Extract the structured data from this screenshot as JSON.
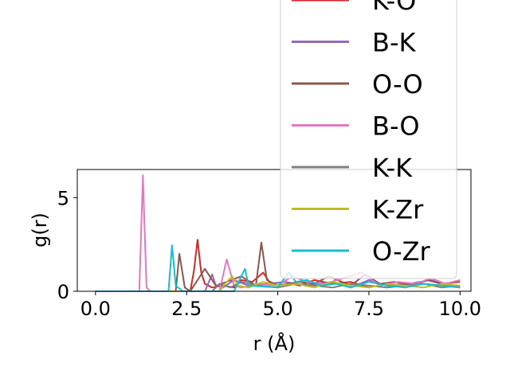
{
  "chart_data": {
    "type": "line",
    "xlabel": "r (Å)",
    "ylabel": "g(r)",
    "xlim": [
      -0.5,
      10.3
    ],
    "ylim": [
      0,
      6.5
    ],
    "xticks": [
      0.0,
      2.5,
      5.0,
      7.5,
      10.0
    ],
    "xtick_labels": [
      "0.0",
      "2.5",
      "5.0",
      "7.5",
      "10.0"
    ],
    "yticks": [
      0,
      5
    ],
    "ytick_labels": [
      "0",
      "5"
    ],
    "grid": false,
    "legend_position": "upper-right",
    "series": [
      {
        "name": "K-O",
        "color": "#d62728",
        "x": [
          0,
          2.6,
          2.7,
          2.8,
          2.9,
          3.0,
          3.2,
          3.5,
          3.8,
          4.0,
          4.3,
          4.6,
          4.8,
          5.2,
          5.6,
          6.0,
          6.5,
          7.0,
          7.5,
          8.0,
          8.5,
          9.0,
          9.5,
          10.0
        ],
        "y": [
          0,
          0,
          1.1,
          2.75,
          1.0,
          0.4,
          0.2,
          0.3,
          0.2,
          0.6,
          0.5,
          1.0,
          0.4,
          0.5,
          0.3,
          0.6,
          0.4,
          0.5,
          0.2,
          0.4,
          0.3,
          0.4,
          0.3,
          0.2
        ]
      },
      {
        "name": "B-K",
        "color": "#9467bd",
        "x": [
          0,
          3.0,
          3.2,
          3.3,
          3.5,
          3.8,
          4.2,
          4.7,
          5.2,
          5.8,
          6.5,
          7.0,
          7.5,
          8.0,
          8.6,
          9.2,
          9.7,
          10.0
        ],
        "y": [
          0,
          0,
          0.9,
          0.3,
          0.2,
          0.6,
          0.3,
          0.4,
          0.5,
          0.3,
          0.5,
          0.2,
          0.6,
          0.3,
          0.4,
          0.6,
          0.3,
          0.2
        ]
      },
      {
        "name": "O-O",
        "color": "#8c564b",
        "x": [
          0,
          2.2,
          2.3,
          2.45,
          2.6,
          3.0,
          3.1,
          3.3,
          3.6,
          4.0,
          4.4,
          4.55,
          4.7,
          5.0,
          5.6,
          6.0,
          6.4,
          7.0,
          7.4,
          7.8,
          8.2,
          8.7,
          9.1,
          9.5,
          10.0
        ],
        "y": [
          0,
          0,
          2.0,
          0.2,
          0,
          1.2,
          0.9,
          0.3,
          0.5,
          0.8,
          0.3,
          2.6,
          0.6,
          0.3,
          0.5,
          0.4,
          0.8,
          0.3,
          0.9,
          0.4,
          0.5,
          0.3,
          0.6,
          0.4,
          0.5
        ]
      },
      {
        "name": "B-O",
        "color": "#e377c2",
        "x": [
          0,
          1.2,
          1.3,
          1.4,
          1.5,
          3.4,
          3.6,
          3.8,
          4.0,
          4.5,
          5.0,
          5.4,
          5.8,
          6.3,
          6.8,
          7.3,
          7.8,
          8.3,
          8.8,
          9.2,
          9.6,
          10.0
        ],
        "y": [
          0,
          0,
          6.2,
          0.2,
          0,
          0,
          1.7,
          0.3,
          0.2,
          0.4,
          0.3,
          0.8,
          0.5,
          0.4,
          0.7,
          1.0,
          0.3,
          0.5,
          0.4,
          0.7,
          0.4,
          0.6
        ]
      },
      {
        "name": "K-K",
        "color": "#7f7f7f",
        "x": [
          0,
          3.2,
          3.4,
          3.7,
          4.0,
          4.5,
          5.0,
          5.5,
          6.0,
          6.5,
          7.0,
          7.5,
          8.0,
          8.5,
          9.0,
          9.5,
          10.0
        ],
        "y": [
          0,
          0,
          0.4,
          0.2,
          0.5,
          0.3,
          0.2,
          0.4,
          0.3,
          0.2,
          0.4,
          0.3,
          0.2,
          0.3,
          0.4,
          0.2,
          0.3
        ]
      },
      {
        "name": "K-Zr",
        "color": "#bcbd22",
        "x": [
          0,
          3.4,
          3.6,
          3.75,
          3.9,
          4.2,
          4.6,
          5.0,
          5.5,
          6.0,
          6.5,
          7.0,
          7.5,
          8.0,
          8.5,
          9.0,
          9.5,
          10.0
        ],
        "y": [
          0,
          0,
          0.5,
          0.8,
          0.3,
          0.2,
          0.5,
          0.3,
          0.4,
          0.2,
          0.5,
          0.3,
          0.2,
          0.4,
          0.3,
          0.2,
          0.4,
          0.3
        ]
      },
      {
        "name": "O-Zr",
        "color": "#17becf",
        "x": [
          0,
          2.0,
          2.1,
          2.2,
          2.4,
          3.8,
          4.0,
          4.1,
          4.2,
          5.0,
          5.3,
          5.5,
          5.8,
          6.2,
          6.6,
          7.0,
          7.5,
          8.0,
          8.5,
          9.0,
          9.5,
          10.0
        ],
        "y": [
          0,
          0,
          2.45,
          0.3,
          0,
          0,
          0.8,
          1.2,
          0.3,
          0.2,
          1.0,
          0.5,
          0.6,
          0.3,
          0.4,
          0.2,
          0.5,
          0.3,
          0.2,
          0.4,
          0.3,
          0.2
        ]
      }
    ]
  }
}
